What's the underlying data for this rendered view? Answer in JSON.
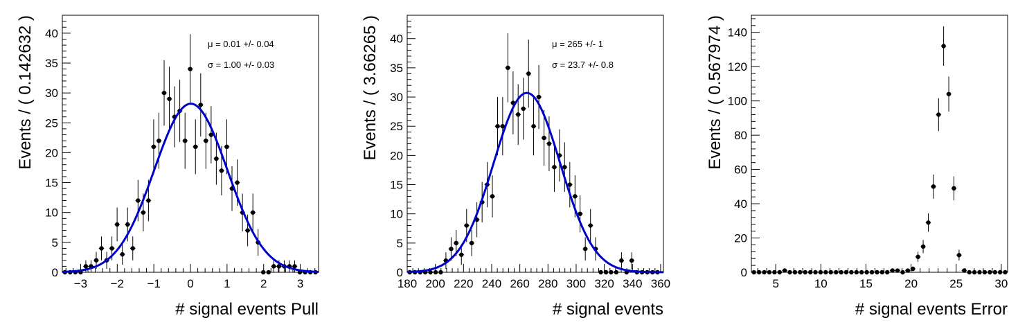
{
  "chart_data": [
    {
      "type": "scatter",
      "xlabel": "# signal events Pull",
      "ylabel": "Events / ( 0.142632 )",
      "xlim": [
        -3.5,
        3.5
      ],
      "ylim": [
        0,
        43
      ],
      "xticks": [
        -3,
        -2,
        -1,
        0,
        1,
        2,
        3
      ],
      "xtick_labels": [
        "−3",
        "−2",
        "−1",
        "0",
        "1",
        "2",
        "3"
      ],
      "yticks": [
        0,
        5,
        10,
        15,
        20,
        25,
        30,
        35,
        40
      ],
      "ytick_labels": [
        "0",
        "5",
        "10",
        "15",
        "20",
        "25",
        "30",
        "35",
        "40"
      ],
      "x": [
        -3.429,
        -3.286,
        -3.144,
        -3.001,
        -2.858,
        -2.716,
        -2.573,
        -2.43,
        -2.288,
        -2.145,
        -2.003,
        -1.86,
        -1.717,
        -1.575,
        -1.432,
        -1.289,
        -1.147,
        -1.004,
        -0.862,
        -0.719,
        -0.576,
        -0.434,
        -0.291,
        -0.148,
        -0.006,
        0.137,
        0.28,
        0.422,
        0.565,
        0.707,
        0.85,
        0.993,
        1.135,
        1.278,
        1.421,
        1.563,
        1.706,
        1.848,
        1.991,
        2.134,
        2.276,
        2.419,
        2.562,
        2.704,
        2.847,
        2.989,
        3.132,
        3.275,
        3.417
      ],
      "values": [
        0,
        0,
        0,
        0,
        1,
        1,
        2,
        4,
        2,
        4,
        8,
        3,
        8,
        4,
        12,
        10,
        12,
        21,
        22,
        30,
        29,
        26,
        27,
        22,
        34,
        21,
        28,
        22,
        23,
        19,
        17,
        21,
        14,
        15,
        10,
        7,
        10,
        5,
        0,
        0,
        1,
        1,
        1,
        1,
        1,
        0,
        0,
        0,
        0
      ],
      "fit": {
        "type": "gaussian",
        "mu": 0.01,
        "sigma": 1.0,
        "amplitude": 28.2,
        "color": "#0000cc"
      },
      "stats": [
        "μ =  0.01 +/- 0.04",
        "σ =  1.00 +/- 0.03"
      ]
    },
    {
      "type": "scatter",
      "xlabel": "# signal events",
      "ylabel": "Events / ( 3.66265 )",
      "xlim": [
        180,
        362
      ],
      "ylim": [
        0,
        44
      ],
      "xticks": [
        180,
        200,
        220,
        240,
        260,
        280,
        300,
        320,
        340,
        360
      ],
      "xtick_labels": [
        "180",
        "200",
        "220",
        "240",
        "260",
        "280",
        "300",
        "320",
        "340",
        "360"
      ],
      "yticks": [
        0,
        5,
        10,
        15,
        20,
        25,
        30,
        35,
        40
      ],
      "ytick_labels": [
        "0",
        "5",
        "10",
        "15",
        "20",
        "25",
        "30",
        "35",
        "40"
      ],
      "x": [
        181.8,
        185.5,
        189.2,
        192.8,
        196.5,
        200.2,
        203.8,
        207.5,
        211.2,
        214.8,
        218.5,
        222.2,
        225.8,
        229.5,
        233.2,
        236.8,
        240.5,
        244.2,
        247.8,
        251.5,
        255.2,
        258.8,
        262.5,
        266.2,
        269.8,
        273.5,
        277.2,
        280.8,
        284.5,
        288.2,
        291.8,
        295.5,
        299.2,
        302.8,
        306.5,
        310.2,
        313.8,
        317.5,
        321.2,
        324.8,
        328.5,
        332.2,
        335.8,
        339.5,
        343.2,
        346.8,
        350.5,
        354.2,
        357.8
      ],
      "values": [
        0,
        0,
        0,
        0,
        0,
        0,
        0,
        2,
        4,
        5,
        3,
        8,
        5,
        9,
        12,
        15,
        13,
        25,
        25,
        35,
        29,
        27,
        28,
        34,
        25,
        30,
        23,
        22,
        18,
        20,
        18,
        15,
        13,
        10,
        4,
        8,
        4,
        0,
        0,
        0,
        0,
        2,
        0,
        2,
        0,
        0,
        0,
        0,
        0
      ],
      "fit": {
        "type": "gaussian",
        "mu": 265,
        "sigma": 23.7,
        "amplitude": 30.7,
        "color": "#0000cc"
      },
      "stats": [
        "μ =  265 +/- 1",
        "σ =  23.7 +/- 0.8"
      ]
    },
    {
      "type": "scatter",
      "xlabel": "# signal events Error",
      "ylabel": "Events / ( 0.567974 )",
      "xlim": [
        2.3,
        30.7
      ],
      "ylim": [
        0,
        150
      ],
      "xticks": [
        5,
        10,
        15,
        20,
        25,
        30
      ],
      "xtick_labels": [
        "5",
        "10",
        "15",
        "20",
        "25",
        "30"
      ],
      "yticks": [
        0,
        20,
        40,
        60,
        80,
        100,
        120,
        140
      ],
      "ytick_labels": [
        "0",
        "20",
        "40",
        "60",
        "80",
        "100",
        "120",
        "140"
      ],
      "x": [
        2.58,
        3.15,
        3.72,
        4.29,
        4.86,
        5.43,
        5.99,
        6.56,
        7.13,
        7.7,
        8.27,
        8.84,
        9.4,
        9.97,
        10.54,
        11.11,
        11.68,
        12.25,
        12.81,
        13.38,
        13.95,
        14.52,
        15.09,
        15.66,
        16.23,
        16.79,
        17.36,
        17.93,
        18.5,
        19.07,
        19.64,
        20.2,
        20.77,
        21.34,
        21.91,
        22.48,
        23.05,
        23.61,
        24.18,
        24.75,
        25.32,
        25.89,
        26.46,
        27.02,
        27.59,
        28.16,
        28.73,
        29.3,
        29.87,
        30.43
      ],
      "values": [
        0,
        0,
        0,
        0,
        0,
        0,
        1,
        0,
        0,
        0,
        0,
        0,
        0,
        0,
        0,
        0,
        0,
        0,
        0,
        0,
        0,
        0,
        0,
        0,
        0,
        0,
        0,
        1,
        1,
        0,
        1,
        2,
        9,
        15,
        29,
        50,
        92,
        132,
        104,
        49,
        10,
        1,
        0,
        0,
        0,
        0,
        0,
        0,
        0,
        0
      ]
    }
  ]
}
